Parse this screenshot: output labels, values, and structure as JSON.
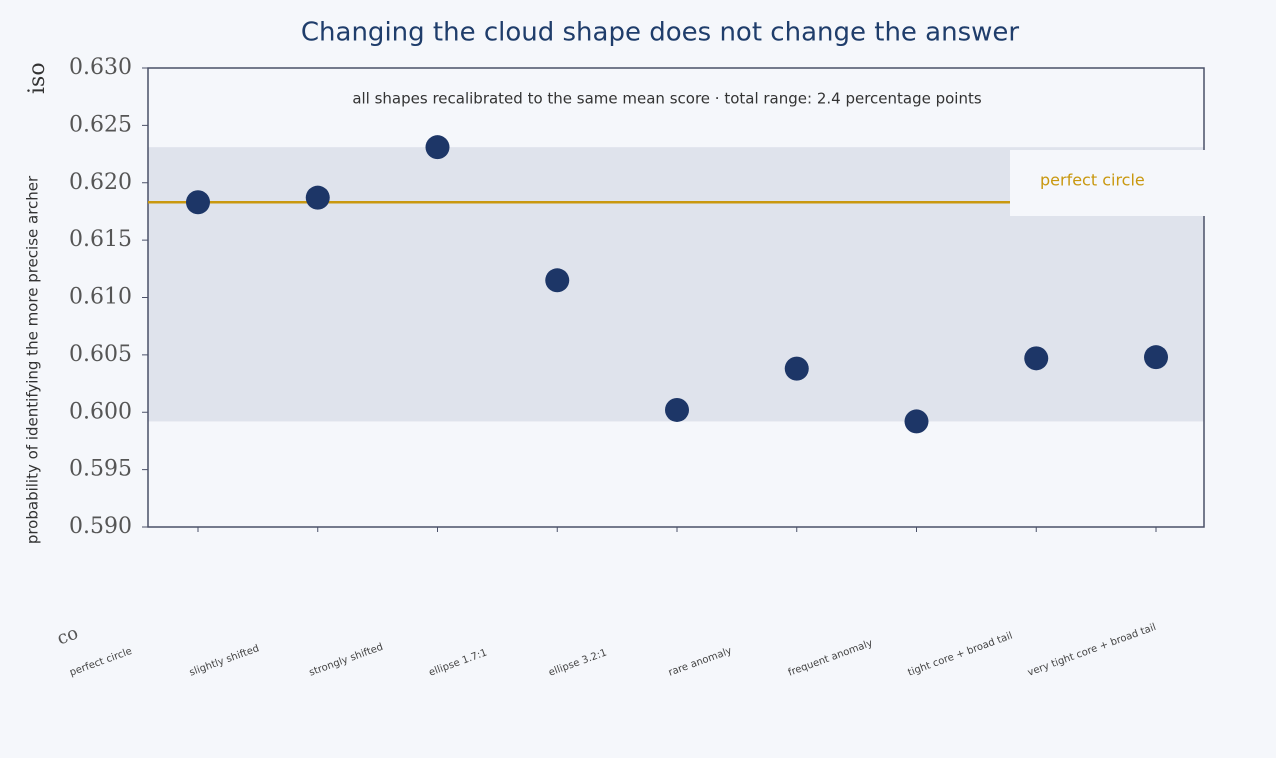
{
  "chart_data": {
    "type": "scatter",
    "title": "Changing the cloud shape does not change the answer",
    "subtitle": "all shapes recalibrated to the same mean score · total range: 2.4 percentage points",
    "y_label": "probability of identifying the more precise archer",
    "stray_labels": [
      "iso",
      "co"
    ],
    "categories": [
      "perfect circle",
      "slightly shifted",
      "strongly shifted",
      "ellipse 1.7:1",
      "ellipse 3.2:1",
      "rare anomaly",
      "frequent anomaly",
      "tight core + broad tail",
      "very tight core + broad tail"
    ],
    "values": [
      0.6183,
      0.6187,
      0.6231,
      0.6115,
      0.6002,
      0.6038,
      0.5992,
      0.6047,
      0.6048
    ],
    "color": "#1d3667",
    "reference": {
      "name": "perfect circle",
      "value": 0.6183,
      "color": "#c9980f"
    },
    "band_color": "#dfe3ec",
    "ylim": [
      0.59,
      0.63
    ],
    "yticks": [
      {
        "value": 0.59,
        "label": "0.590"
      },
      {
        "value": 0.595,
        "label": "0.595"
      },
      {
        "value": 0.6,
        "label": "0.600"
      },
      {
        "value": 0.605,
        "label": "0.605"
      },
      {
        "value": 0.61,
        "label": "0.610"
      },
      {
        "value": 0.615,
        "label": "0.615"
      },
      {
        "value": 0.62,
        "label": "0.620"
      },
      {
        "value": 0.625,
        "label": "0.625"
      },
      {
        "value": 0.63,
        "label": "0.630"
      }
    ]
  }
}
